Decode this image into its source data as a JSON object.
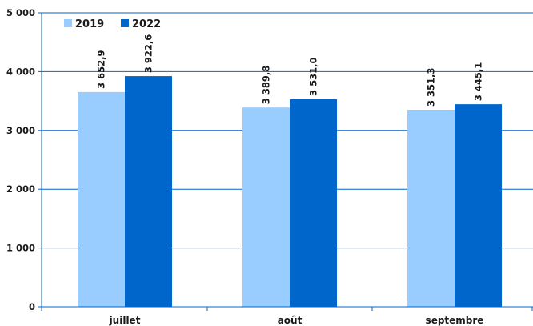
{
  "chart_data": {
    "type": "bar",
    "categories": [
      "juillet",
      "août",
      "septembre"
    ],
    "series": [
      {
        "name": "2019",
        "values": [
          3652.9,
          3389.8,
          3351.3
        ],
        "color": "#99ccff",
        "labels": [
          "3 652,9",
          "3 389,8",
          "3 351,3"
        ]
      },
      {
        "name": "2022",
        "values": [
          3922.6,
          3531.0,
          3445.1
        ],
        "color": "#0066cc",
        "labels": [
          "3 922,6",
          "3 531,0",
          "3 445,1"
        ]
      }
    ],
    "ylim": [
      0,
      5000
    ],
    "yticks": [
      0,
      1000,
      2000,
      3000,
      4000,
      5000
    ],
    "ytick_labels": [
      "0",
      "1 000",
      "2 000",
      "3 000",
      "4 000",
      "5 000"
    ],
    "grid": true,
    "grid_color": "#0066cc",
    "legend": "top-left"
  }
}
